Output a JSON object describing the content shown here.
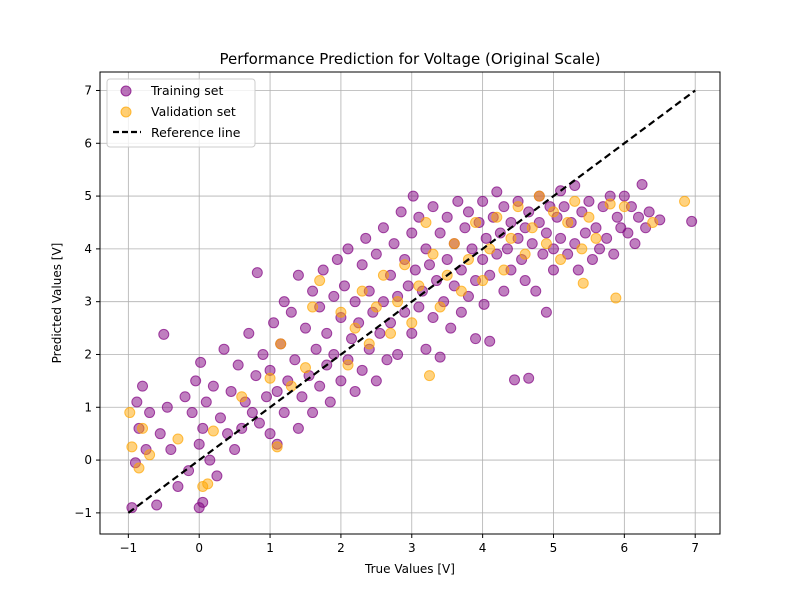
{
  "chart_data": {
    "type": "scatter",
    "title": "Performance Prediction for Voltage (Original Scale)",
    "xlabel": "True Values [V]",
    "ylabel": "Predicted Values [V]",
    "xlim": [
      -1.4,
      7.35
    ],
    "ylim": [
      -1.4,
      7.35
    ],
    "xticks": [
      -1,
      0,
      1,
      2,
      3,
      4,
      5,
      6,
      7
    ],
    "yticks": [
      -1,
      0,
      1,
      2,
      3,
      4,
      5,
      6,
      7
    ],
    "grid": true,
    "legend_position": "top-left",
    "series": [
      {
        "name": "Training set",
        "marker": "circle",
        "color": "#800080",
        "points": [
          [
            -0.95,
            -0.9
          ],
          [
            -0.9,
            -0.05
          ],
          [
            -0.88,
            1.1
          ],
          [
            -0.85,
            0.6
          ],
          [
            -0.8,
            1.4
          ],
          [
            -0.75,
            0.2
          ],
          [
            -0.7,
            0.9
          ],
          [
            -0.6,
            -0.85
          ],
          [
            -0.55,
            0.5
          ],
          [
            -0.5,
            2.38
          ],
          [
            -0.45,
            1.0
          ],
          [
            -0.4,
            0.2
          ],
          [
            -0.3,
            -0.5
          ],
          [
            -0.2,
            1.2
          ],
          [
            -0.15,
            -0.2
          ],
          [
            -0.1,
            0.9
          ],
          [
            -0.05,
            1.5
          ],
          [
            0.0,
            -0.9
          ],
          [
            0.0,
            0.3
          ],
          [
            0.02,
            1.85
          ],
          [
            0.05,
            -0.8
          ],
          [
            0.05,
            0.6
          ],
          [
            0.1,
            1.1
          ],
          [
            0.15,
            0.0
          ],
          [
            0.2,
            1.4
          ],
          [
            0.25,
            -0.3
          ],
          [
            0.3,
            0.8
          ],
          [
            0.35,
            2.1
          ],
          [
            0.4,
            0.5
          ],
          [
            0.45,
            1.3
          ],
          [
            0.5,
            0.2
          ],
          [
            0.55,
            1.8
          ],
          [
            0.6,
            0.6
          ],
          [
            0.65,
            1.1
          ],
          [
            0.7,
            2.4
          ],
          [
            0.75,
            0.9
          ],
          [
            0.8,
            1.6
          ],
          [
            0.82,
            3.55
          ],
          [
            0.85,
            0.7
          ],
          [
            0.9,
            2.0
          ],
          [
            0.95,
            1.2
          ],
          [
            1.0,
            0.5
          ],
          [
            1.0,
            1.7
          ],
          [
            1.05,
            2.6
          ],
          [
            1.1,
            0.3
          ],
          [
            1.1,
            1.3
          ],
          [
            1.15,
            2.2
          ],
          [
            1.2,
            0.9
          ],
          [
            1.2,
            3.0
          ],
          [
            1.25,
            1.5
          ],
          [
            1.3,
            2.8
          ],
          [
            1.35,
            1.9
          ],
          [
            1.4,
            0.6
          ],
          [
            1.4,
            3.5
          ],
          [
            1.45,
            1.2
          ],
          [
            1.5,
            2.5
          ],
          [
            1.55,
            1.6
          ],
          [
            1.6,
            3.2
          ],
          [
            1.6,
            0.9
          ],
          [
            1.65,
            2.1
          ],
          [
            1.7,
            1.4
          ],
          [
            1.7,
            2.9
          ],
          [
            1.75,
            3.6
          ],
          [
            1.8,
            1.8
          ],
          [
            1.8,
            2.4
          ],
          [
            1.85,
            1.1
          ],
          [
            1.9,
            3.1
          ],
          [
            1.9,
            2.0
          ],
          [
            1.95,
            3.8
          ],
          [
            2.0,
            1.5
          ],
          [
            2.0,
            2.7
          ],
          [
            2.05,
            3.3
          ],
          [
            2.1,
            1.9
          ],
          [
            2.1,
            4.0
          ],
          [
            2.15,
            2.3
          ],
          [
            2.2,
            3.0
          ],
          [
            2.2,
            1.3
          ],
          [
            2.25,
            2.6
          ],
          [
            2.3,
            3.7
          ],
          [
            2.3,
            1.7
          ],
          [
            2.35,
            4.2
          ],
          [
            2.4,
            2.1
          ],
          [
            2.4,
            3.2
          ],
          [
            2.45,
            2.8
          ],
          [
            2.5,
            1.5
          ],
          [
            2.5,
            3.9
          ],
          [
            2.55,
            2.4
          ],
          [
            2.6,
            4.4
          ],
          [
            2.6,
            3.0
          ],
          [
            2.65,
            1.9
          ],
          [
            2.7,
            3.5
          ],
          [
            2.7,
            2.6
          ],
          [
            2.75,
            4.1
          ],
          [
            2.8,
            3.1
          ],
          [
            2.8,
            2.0
          ],
          [
            2.85,
            4.7
          ],
          [
            2.9,
            2.8
          ],
          [
            2.9,
            3.8
          ],
          [
            2.95,
            3.3
          ],
          [
            3.0,
            2.4
          ],
          [
            3.0,
            4.3
          ],
          [
            3.02,
            5.0
          ],
          [
            3.05,
            3.6
          ],
          [
            3.1,
            2.9
          ],
          [
            3.1,
            4.6
          ],
          [
            3.15,
            3.2
          ],
          [
            3.2,
            4.0
          ],
          [
            3.2,
            2.1
          ],
          [
            3.25,
            3.7
          ],
          [
            3.3,
            4.8
          ],
          [
            3.3,
            2.7
          ],
          [
            3.35,
            3.4
          ],
          [
            3.4,
            4.3
          ],
          [
            3.4,
            1.95
          ],
          [
            3.45,
            3.0
          ],
          [
            3.5,
            4.6
          ],
          [
            3.5,
            3.8
          ],
          [
            3.55,
            2.5
          ],
          [
            3.6,
            4.1
          ],
          [
            3.6,
            3.3
          ],
          [
            3.65,
            4.9
          ],
          [
            3.7,
            3.6
          ],
          [
            3.7,
            2.8
          ],
          [
            3.75,
            4.4
          ],
          [
            3.8,
            3.1
          ],
          [
            3.8,
            4.7
          ],
          [
            3.85,
            4.0
          ],
          [
            3.9,
            3.4
          ],
          [
            3.9,
            2.3
          ],
          [
            3.95,
            4.5
          ],
          [
            4.0,
            3.8
          ],
          [
            4.0,
            4.9
          ],
          [
            4.02,
            2.95
          ],
          [
            4.05,
            4.2
          ],
          [
            4.1,
            3.5
          ],
          [
            4.1,
            2.25
          ],
          [
            4.15,
            4.6
          ],
          [
            4.2,
            3.9
          ],
          [
            4.2,
            5.08
          ],
          [
            4.25,
            4.3
          ],
          [
            4.3,
            3.2
          ],
          [
            4.3,
            4.8
          ],
          [
            4.35,
            4.0
          ],
          [
            4.4,
            3.6
          ],
          [
            4.4,
            4.5
          ],
          [
            4.45,
            1.52
          ],
          [
            4.5,
            4.2
          ],
          [
            4.5,
            4.9
          ],
          [
            4.55,
            3.8
          ],
          [
            4.6,
            4.4
          ],
          [
            4.6,
            3.4
          ],
          [
            4.65,
            4.7
          ],
          [
            4.65,
            1.55
          ],
          [
            4.7,
            4.1
          ],
          [
            4.75,
            3.2
          ],
          [
            4.8,
            4.5
          ],
          [
            4.8,
            5.0
          ],
          [
            4.85,
            3.9
          ],
          [
            4.9,
            4.3
          ],
          [
            4.9,
            2.8
          ],
          [
            4.95,
            4.8
          ],
          [
            5.0,
            4.0
          ],
          [
            5.0,
            3.6
          ],
          [
            5.05,
            4.6
          ],
          [
            5.1,
            4.2
          ],
          [
            5.1,
            5.1
          ],
          [
            5.15,
            4.8
          ],
          [
            5.2,
            3.9
          ],
          [
            5.25,
            4.5
          ],
          [
            5.3,
            4.1
          ],
          [
            5.3,
            5.2
          ],
          [
            5.35,
            3.6
          ],
          [
            5.4,
            4.7
          ],
          [
            5.45,
            4.3
          ],
          [
            5.5,
            4.9
          ],
          [
            5.55,
            3.8
          ],
          [
            5.6,
            4.4
          ],
          [
            5.65,
            4.0
          ],
          [
            5.7,
            4.8
          ],
          [
            5.75,
            4.2
          ],
          [
            5.8,
            5.0
          ],
          [
            5.85,
            3.9
          ],
          [
            5.9,
            4.6
          ],
          [
            5.95,
            4.4
          ],
          [
            6.0,
            5.0
          ],
          [
            6.05,
            4.3
          ],
          [
            6.1,
            4.8
          ],
          [
            6.15,
            4.1
          ],
          [
            6.2,
            4.6
          ],
          [
            6.25,
            5.22
          ],
          [
            6.3,
            4.4
          ],
          [
            6.35,
            4.7
          ],
          [
            6.5,
            4.55
          ],
          [
            6.95,
            4.52
          ]
        ]
      },
      {
        "name": "Validation set",
        "marker": "circle",
        "color": "#ffa500",
        "points": [
          [
            -0.98,
            0.9
          ],
          [
            -0.95,
            0.25
          ],
          [
            -0.85,
            -0.15
          ],
          [
            -0.8,
            0.6
          ],
          [
            -0.7,
            0.1
          ],
          [
            -0.3,
            0.4
          ],
          [
            0.05,
            -0.5
          ],
          [
            0.12,
            -0.45
          ],
          [
            0.2,
            0.55
          ],
          [
            0.6,
            1.2
          ],
          [
            1.0,
            1.55
          ],
          [
            1.1,
            0.25
          ],
          [
            1.15,
            2.2
          ],
          [
            1.3,
            1.4
          ],
          [
            1.5,
            1.75
          ],
          [
            1.6,
            2.9
          ],
          [
            1.7,
            3.4
          ],
          [
            2.0,
            2.8
          ],
          [
            2.1,
            1.8
          ],
          [
            2.2,
            2.5
          ],
          [
            2.3,
            3.2
          ],
          [
            2.4,
            2.2
          ],
          [
            2.5,
            2.9
          ],
          [
            2.6,
            3.5
          ],
          [
            2.7,
            2.4
          ],
          [
            2.8,
            3.0
          ],
          [
            2.9,
            3.7
          ],
          [
            3.0,
            2.6
          ],
          [
            3.1,
            3.3
          ],
          [
            3.2,
            4.5
          ],
          [
            3.25,
            1.6
          ],
          [
            3.3,
            3.9
          ],
          [
            3.4,
            2.9
          ],
          [
            3.5,
            3.5
          ],
          [
            3.6,
            4.1
          ],
          [
            3.7,
            3.2
          ],
          [
            3.8,
            3.8
          ],
          [
            3.9,
            4.5
          ],
          [
            4.0,
            3.4
          ],
          [
            4.1,
            4.0
          ],
          [
            4.2,
            4.6
          ],
          [
            4.3,
            3.6
          ],
          [
            4.4,
            4.2
          ],
          [
            4.5,
            4.8
          ],
          [
            4.6,
            3.9
          ],
          [
            4.7,
            4.4
          ],
          [
            4.8,
            5.0
          ],
          [
            4.9,
            4.1
          ],
          [
            5.0,
            4.7
          ],
          [
            5.1,
            3.8
          ],
          [
            5.2,
            4.5
          ],
          [
            5.3,
            4.9
          ],
          [
            5.4,
            4.0
          ],
          [
            5.42,
            3.35
          ],
          [
            5.5,
            4.6
          ],
          [
            5.6,
            4.2
          ],
          [
            5.8,
            4.85
          ],
          [
            5.88,
            3.07
          ],
          [
            6.0,
            4.8
          ],
          [
            6.4,
            4.5
          ],
          [
            6.85,
            4.9
          ]
        ]
      },
      {
        "name": "Reference line",
        "type": "line",
        "style": "dashed",
        "color": "#000000",
        "points": [
          [
            -1,
            -1
          ],
          [
            7,
            7
          ]
        ]
      }
    ]
  }
}
